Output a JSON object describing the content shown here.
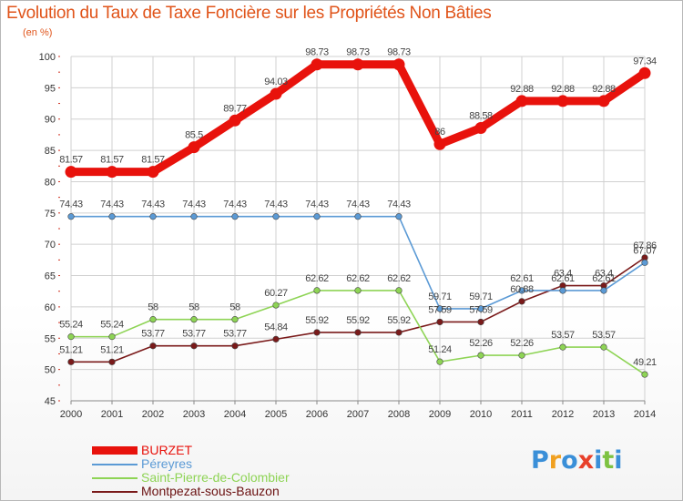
{
  "header": {
    "title": "Evolution du Taux de Taxe Foncière sur les Propriétés Non Bâties",
    "unit": "(en %)"
  },
  "logo": {
    "text": "Proxiti",
    "letters": [
      "P",
      "r",
      "o",
      "x",
      "i",
      "t",
      "i"
    ],
    "colors": [
      "#3a8fd8",
      "#f0a020",
      "#3a8fd8",
      "#e8402a",
      "#3a8fd8",
      "#7dc242",
      "#3a8fd8"
    ]
  },
  "chart_data": {
    "type": "line",
    "title": "Evolution du Taux de Taxe Foncière sur les Propriétés Non Bâties",
    "ylabel": "(en %)",
    "xlabel": "",
    "ylim": [
      45,
      100
    ],
    "yticks": [
      45,
      50,
      55,
      60,
      65,
      70,
      75,
      80,
      85,
      90,
      95,
      100
    ],
    "categories": [
      "2000",
      "2001",
      "2002",
      "2003",
      "2004",
      "2005",
      "2006",
      "2007",
      "2008",
      "2009",
      "2010",
      "2011",
      "2012",
      "2013",
      "2014"
    ],
    "grid": true,
    "legend_position": "bottom-left",
    "series": [
      {
        "name": "BURZET",
        "color": "#e8120c",
        "values": [
          81.57,
          81.57,
          81.57,
          85.5,
          89.77,
          94.03,
          98.73,
          98.73,
          98.73,
          86,
          88.58,
          92.88,
          92.88,
          92.88,
          97.34
        ],
        "labels": [
          "81.57",
          "81.57",
          "81.57",
          "85.5",
          "89.77",
          "94.03",
          "98.73",
          "98.73",
          "98.73",
          "86",
          "88.58",
          "92.88",
          "92.88",
          "92.88",
          "97.34"
        ]
      },
      {
        "name": "Péreyres",
        "color": "#5b9ad5",
        "values": [
          74.43,
          74.43,
          74.43,
          74.43,
          74.43,
          74.43,
          74.43,
          74.43,
          74.43,
          59.71,
          59.71,
          62.61,
          62.61,
          62.61,
          67.07
        ],
        "labels": [
          "74.43",
          "74.43",
          "74.43",
          "74.43",
          "74.43",
          "74.43",
          "74.43",
          "74.43",
          "74.43",
          "59.71",
          "59.71",
          "62.61",
          "62.61",
          "62.61",
          "67.07"
        ]
      },
      {
        "name": "Saint-Pierre-de-Colombier",
        "color": "#8ed455",
        "values": [
          55.24,
          55.24,
          58,
          58,
          58,
          60.27,
          62.62,
          62.62,
          62.62,
          51.24,
          52.26,
          52.26,
          53.57,
          53.57,
          49.21
        ],
        "labels": [
          "55.24",
          "55.24",
          "58",
          "58",
          "58",
          "60.27",
          "62.62",
          "62.62",
          "62.62",
          "51.24",
          "52.26",
          "52.26",
          "53.57",
          "53.57",
          "49.21"
        ]
      },
      {
        "name": "Montpezat-sous-Bauzon",
        "color": "#7a1a1a",
        "values": [
          51.21,
          51.21,
          53.77,
          53.77,
          53.77,
          54.84,
          55.92,
          55.92,
          55.92,
          57.59,
          57.59,
          60.88,
          63.4,
          63.4,
          67.86
        ],
        "labels": [
          "51.21",
          "51.21",
          "53.77",
          "53.77",
          "53.77",
          "54.84",
          "55.92",
          "55.92",
          "55.92",
          "57.59",
          "57.59",
          "60.88",
          "63.4",
          "63.4",
          "67.86"
        ]
      }
    ]
  }
}
